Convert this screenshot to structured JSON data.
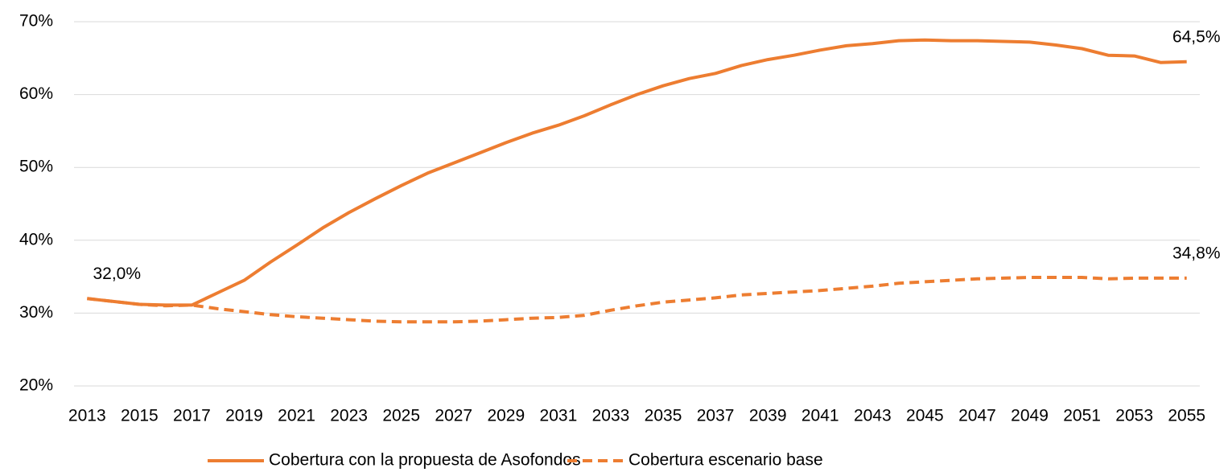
{
  "chart_data": {
    "type": "line",
    "categories": [
      "2013",
      null,
      "2015",
      null,
      "2017",
      null,
      "2019",
      null,
      "2021",
      null,
      "2023",
      null,
      "2025",
      null,
      "2027",
      null,
      "2029",
      null,
      "2031",
      null,
      "2033",
      null,
      "2035",
      null,
      "2037",
      null,
      "2039",
      null,
      "2041",
      null,
      "2043",
      null,
      "2045",
      null,
      "2047",
      null,
      "2049",
      null,
      "2051",
      null,
      "2053",
      null,
      "2055"
    ],
    "ylim": [
      20,
      70
    ],
    "yticks": [
      {
        "value": 20,
        "label": "20%"
      },
      {
        "value": 30,
        "label": "30%"
      },
      {
        "value": 40,
        "label": "40%"
      },
      {
        "value": 50,
        "label": "50%"
      },
      {
        "value": 60,
        "label": "60%"
      },
      {
        "value": 70,
        "label": "70%"
      }
    ],
    "grid": true,
    "legend": "bottom",
    "series": [
      {
        "name": "Cobertura con la propuesta de Asofondos",
        "color": "#ed7d31",
        "style": "solid",
        "values": [
          32.0,
          31.6,
          31.2,
          31.1,
          31.1,
          32.8,
          34.5,
          37.0,
          39.3,
          41.7,
          43.8,
          45.7,
          47.5,
          49.2,
          50.6,
          52.0,
          53.4,
          54.7,
          55.8,
          57.1,
          58.6,
          60.0,
          61.2,
          62.2,
          62.9,
          64.0,
          64.8,
          65.4,
          66.1,
          66.7,
          67.0,
          67.4,
          67.5,
          67.4,
          67.4,
          67.3,
          67.2,
          66.8,
          66.3,
          65.4,
          65.3,
          64.4,
          64.5
        ],
        "value_labels": [
          "32,0%",
          null,
          null,
          null,
          null,
          null,
          null,
          null,
          null,
          null,
          null,
          null,
          null,
          null,
          null,
          null,
          null,
          null,
          null,
          null,
          null,
          null,
          null,
          null,
          null,
          null,
          null,
          null,
          null,
          null,
          null,
          null,
          null,
          null,
          null,
          null,
          null,
          null,
          null,
          null,
          null,
          null,
          "64,5%"
        ]
      },
      {
        "name": "Cobertura escenario base",
        "color": "#ed7d31",
        "style": "dashed",
        "values": [
          32.0,
          31.6,
          31.2,
          31.0,
          31.1,
          30.6,
          30.2,
          29.8,
          29.5,
          29.3,
          29.1,
          28.9,
          28.8,
          28.8,
          28.8,
          28.9,
          29.1,
          29.3,
          29.4,
          29.7,
          30.4,
          31.0,
          31.5,
          31.8,
          32.1,
          32.5,
          32.7,
          32.9,
          33.1,
          33.4,
          33.7,
          34.1,
          34.3,
          34.5,
          34.7,
          34.8,
          34.9,
          34.9,
          34.9,
          34.7,
          34.8,
          34.8,
          34.8
        ],
        "value_labels": [
          null,
          null,
          null,
          null,
          null,
          null,
          null,
          null,
          null,
          null,
          null,
          null,
          null,
          null,
          null,
          null,
          null,
          null,
          null,
          null,
          null,
          null,
          null,
          null,
          null,
          null,
          null,
          null,
          null,
          null,
          null,
          null,
          null,
          null,
          null,
          null,
          null,
          null,
          null,
          null,
          null,
          null,
          "34,8%"
        ]
      }
    ]
  }
}
